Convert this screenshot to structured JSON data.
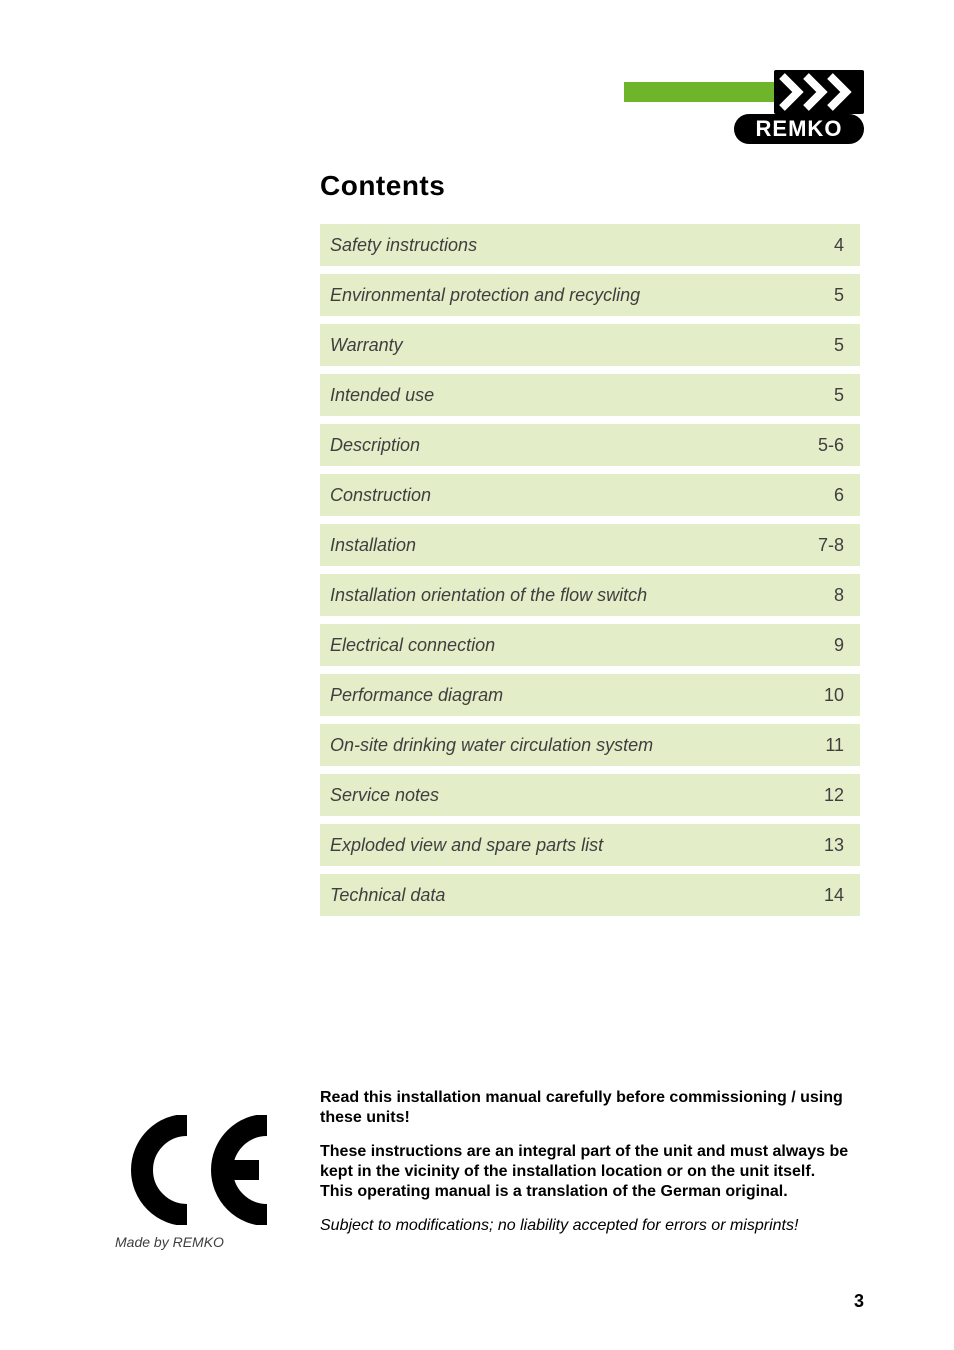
{
  "logo": {
    "brand_text": "REMKO",
    "tm_mark": "®",
    "colors": {
      "green": "#6eb52c",
      "black": "#000000",
      "white": "#ffffff"
    }
  },
  "heading": "Contents",
  "toc_bg": "#e3edc8",
  "toc_text_color": "#3f3f3f",
  "toc": [
    {
      "title": "Safety instructions",
      "page": "4"
    },
    {
      "title": "Environmental protection and recycling",
      "page": "5"
    },
    {
      "title": "Warranty",
      "page": "5"
    },
    {
      "title": "Intended use",
      "page": "5"
    },
    {
      "title": "Description",
      "page": "5-6"
    },
    {
      "title": "Construction",
      "page": "6"
    },
    {
      "title": "Installation",
      "page": "7-8"
    },
    {
      "title": "Installation orientation of the flow switch",
      "page": "8"
    },
    {
      "title": "Electrical connection",
      "page": "9"
    },
    {
      "title": "Performance diagram",
      "page": "10"
    },
    {
      "title": "On-site drinking water circulation system",
      "page": "11"
    },
    {
      "title": "Service notes",
      "page": "12"
    },
    {
      "title": "Exploded view and spare parts list",
      "page": "13"
    },
    {
      "title": "Technical data",
      "page": "14"
    }
  ],
  "footer": {
    "line1": "Read this installation manual carefully before commissioning / using these units!",
    "line2": "These instructions are an integral part of the unit and must always be kept in the vicinity of the installation location or on the unit itself.",
    "line3": "This operating manual is a translation of the German original.",
    "line4": "Subject to modifications; no liability accepted for errors or misprints!"
  },
  "ce": {
    "caption": "Made by REMKO"
  },
  "page_number": "3"
}
